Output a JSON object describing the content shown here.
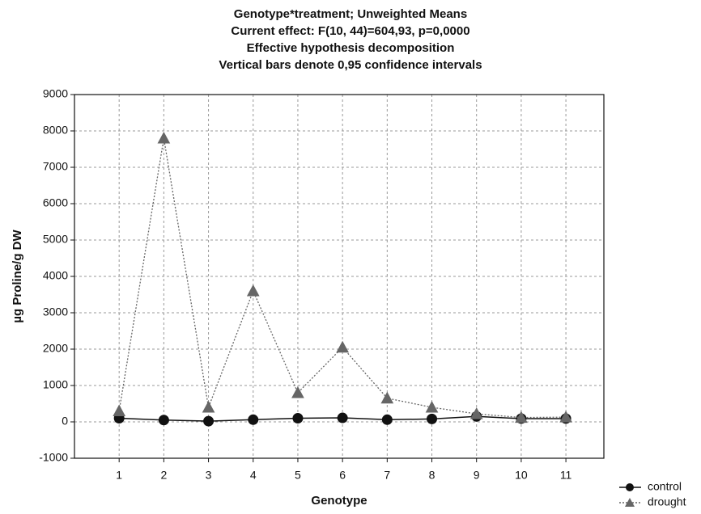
{
  "chart_data": {
    "type": "line",
    "title": [
      "Genotype*treatment; Unweighted Means",
      "Current effect: F(10, 44)=604,93, p=0,0000",
      "Effective hypothesis decomposition",
      "Vertical bars denote 0,95 confidence intervals"
    ],
    "xlabel": "Genotype",
    "ylabel": "µg Proline/g DW",
    "x": [
      1,
      2,
      3,
      4,
      5,
      6,
      7,
      8,
      9,
      10,
      11
    ],
    "xlim": [
      0,
      11.85
    ],
    "xticks": [
      1,
      2,
      3,
      4,
      5,
      6,
      7,
      8,
      9,
      10,
      11
    ],
    "ylim": [
      -1000,
      9000
    ],
    "yticks": [
      -1000,
      0,
      1000,
      2000,
      3000,
      4000,
      5000,
      6000,
      7000,
      8000,
      9000
    ],
    "grid": true,
    "legend": "outside-bottom-right",
    "series": [
      {
        "name": "control",
        "color": "#111111",
        "marker": "circle",
        "linestyle": "solid",
        "values": [
          100,
          50,
          20,
          60,
          100,
          110,
          60,
          80,
          150,
          90,
          90
        ]
      },
      {
        "name": "drought",
        "color": "#666666",
        "marker": "triangle",
        "linestyle": "dotted",
        "values": [
          300,
          7800,
          400,
          3600,
          800,
          2050,
          650,
          400,
          220,
          120,
          130
        ]
      }
    ]
  }
}
